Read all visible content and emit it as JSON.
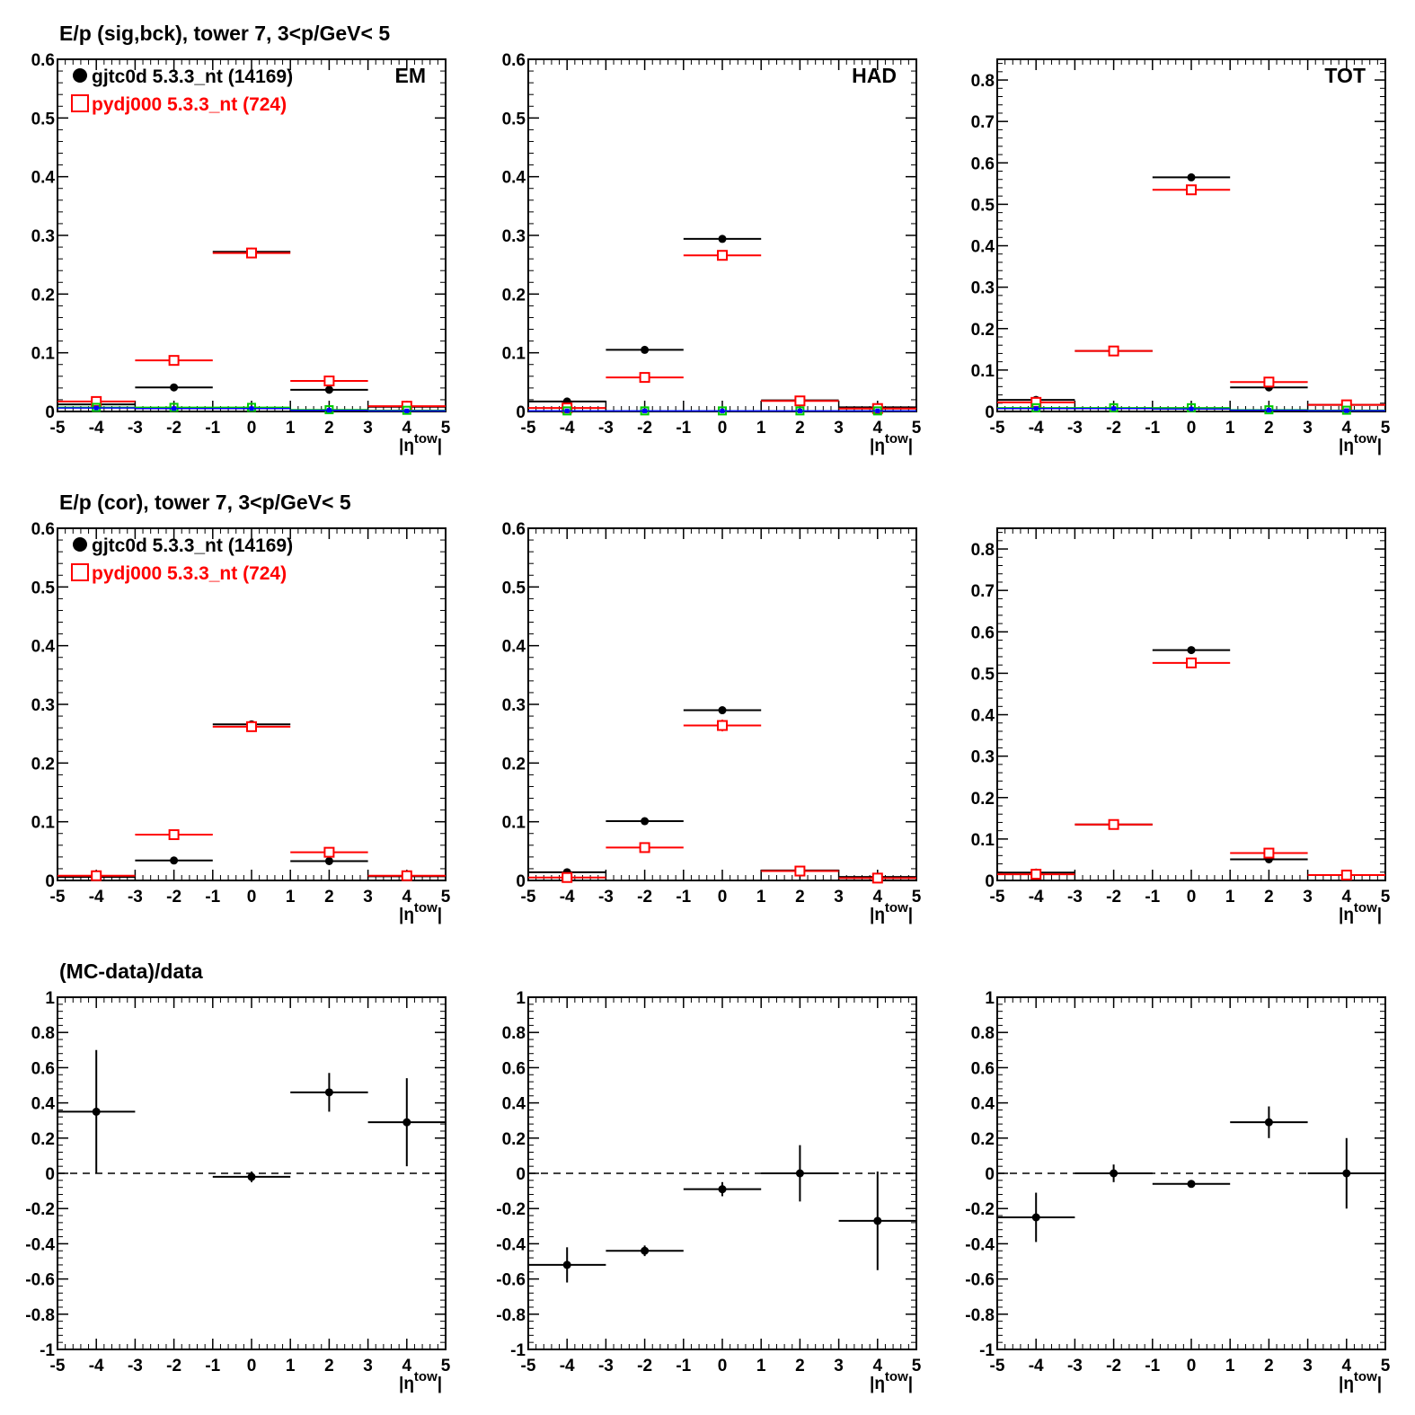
{
  "figure": {
    "row_titles": [
      "E/p (sig,bck), tower 7,  3<p/GeV< 5",
      "E/p (cor), tower 7,  3<p/GeV< 5",
      "(MC-data)/data"
    ],
    "colors": {
      "data": "#000000",
      "mc": "#ff0000",
      "green": "#00cc00",
      "blue": "#0000ff",
      "axis": "#000000"
    }
  },
  "chart_data": [
    {
      "type": "scatter",
      "row": 0,
      "col": 0,
      "panel_label": "EM",
      "xlim": [
        -5,
        5
      ],
      "ylim": [
        0,
        0.6
      ],
      "x_ticks": [
        "-5",
        "-4",
        "-3",
        "-2",
        "-1",
        "0",
        "1",
        "2",
        "3",
        "4",
        "5"
      ],
      "y_ticks": [
        "0",
        "0.1",
        "0.2",
        "0.3",
        "0.4",
        "0.5",
        "0.6"
      ],
      "xlabel": "|η^tow|",
      "legend": [
        {
          "name": "gjtc0d 5.3.3_nt (14169)",
          "marker": "filled-circle",
          "color": "#000000"
        },
        {
          "name": "pydj000 5.3.3_nt (724)",
          "marker": "open-square",
          "color": "#ff0000"
        }
      ],
      "bins": [
        [
          -5,
          -3
        ],
        [
          -3,
          -1
        ],
        [
          -1,
          1
        ],
        [
          1,
          3
        ],
        [
          3,
          5
        ]
      ],
      "series": [
        {
          "name": "gjtc0d 5.3.3_nt (14169)",
          "color": "#000000",
          "marker": "filled-circle",
          "y": [
            0.012,
            0.041,
            0.272,
            0.037,
            0.008
          ],
          "err": [
            0.001,
            0.001,
            0.002,
            0.001,
            0.001
          ]
        },
        {
          "name": "pydj000 5.3.3_nt (724)",
          "color": "#ff0000",
          "marker": "open-square",
          "y": [
            0.017,
            0.087,
            0.27,
            0.052,
            0.009
          ],
          "err": [
            0.002,
            0.004,
            0.005,
            0.003,
            0.002
          ]
        },
        {
          "color": "#00cc00",
          "marker": "open-square-small",
          "y": [
            0.007,
            0.007,
            0.007,
            0.003,
            0.002
          ],
          "err": [
            0,
            0,
            0,
            0,
            0
          ]
        },
        {
          "color": "#0000ff",
          "marker": "filled-square-small",
          "y": [
            0.006,
            0.005,
            0.005,
            0.002,
            0.001
          ],
          "err": [
            0,
            0,
            0,
            0,
            0
          ]
        }
      ]
    },
    {
      "type": "scatter",
      "row": 0,
      "col": 1,
      "panel_label": "HAD",
      "xlim": [
        -5,
        5
      ],
      "ylim": [
        0,
        0.6
      ],
      "x_ticks": [
        "-5",
        "-4",
        "-3",
        "-2",
        "-1",
        "0",
        "1",
        "2",
        "3",
        "4",
        "5"
      ],
      "y_ticks": [
        "0",
        "0.1",
        "0.2",
        "0.3",
        "0.4",
        "0.5",
        "0.6"
      ],
      "xlabel": "|η^tow|",
      "bins": [
        [
          -5,
          -3
        ],
        [
          -3,
          -1
        ],
        [
          -1,
          1
        ],
        [
          1,
          3
        ],
        [
          3,
          5
        ]
      ],
      "series": [
        {
          "color": "#000000",
          "marker": "filled-circle",
          "y": [
            0.017,
            0.105,
            0.294,
            0.019,
            0.007
          ],
          "err": [
            0.001,
            0.001,
            0.002,
            0.001,
            0.001
          ]
        },
        {
          "color": "#ff0000",
          "marker": "open-square",
          "y": [
            0.006,
            0.058,
            0.266,
            0.018,
            0.005
          ],
          "err": [
            0.002,
            0.004,
            0.008,
            0.003,
            0.002
          ]
        },
        {
          "color": "#00cc00",
          "marker": "open-square-small",
          "y": [
            0.001,
            0.001,
            0.001,
            0.001,
            0.001
          ],
          "err": [
            0,
            0,
            0,
            0,
            0
          ]
        },
        {
          "color": "#0000ff",
          "marker": "filled-square-small",
          "y": [
            0.001,
            0.001,
            0.001,
            0.001,
            0.001
          ],
          "err": [
            0,
            0,
            0,
            0,
            0
          ]
        }
      ]
    },
    {
      "type": "scatter",
      "row": 0,
      "col": 2,
      "panel_label": "TOT",
      "xlim": [
        -5,
        5
      ],
      "ylim": [
        0,
        0.85
      ],
      "x_ticks": [
        "-5",
        "-4",
        "-3",
        "-2",
        "-1",
        "0",
        "1",
        "2",
        "3",
        "4",
        "5"
      ],
      "y_ticks": [
        "0",
        "0.1",
        "0.2",
        "0.3",
        "0.4",
        "0.5",
        "0.6",
        "0.7",
        "0.8"
      ],
      "xlabel": "|η^tow|",
      "bins": [
        [
          -5,
          -3
        ],
        [
          -3,
          -1
        ],
        [
          -1,
          1
        ],
        [
          1,
          3
        ],
        [
          3,
          5
        ]
      ],
      "series": [
        {
          "color": "#000000",
          "marker": "filled-circle",
          "y": [
            0.028,
            0.146,
            0.565,
            0.058,
            0.016
          ],
          "err": [
            0.001,
            0.001,
            0.002,
            0.001,
            0.001
          ]
        },
        {
          "color": "#ff0000",
          "marker": "open-square",
          "y": [
            0.022,
            0.146,
            0.535,
            0.071,
            0.016
          ],
          "err": [
            0.003,
            0.005,
            0.01,
            0.004,
            0.002
          ]
        },
        {
          "color": "#00cc00",
          "marker": "open-square-small",
          "y": [
            0.009,
            0.009,
            0.009,
            0.004,
            0.003
          ],
          "err": [
            0,
            0,
            0,
            0,
            0
          ]
        },
        {
          "color": "#0000ff",
          "marker": "filled-square-small",
          "y": [
            0.007,
            0.007,
            0.006,
            0.003,
            0.002
          ],
          "err": [
            0,
            0,
            0,
            0,
            0
          ]
        }
      ]
    },
    {
      "type": "scatter",
      "row": 1,
      "col": 0,
      "xlim": [
        -5,
        5
      ],
      "ylim": [
        0,
        0.6
      ],
      "x_ticks": [
        "-5",
        "-4",
        "-3",
        "-2",
        "-1",
        "0",
        "1",
        "2",
        "3",
        "4",
        "5"
      ],
      "y_ticks": [
        "0",
        "0.1",
        "0.2",
        "0.3",
        "0.4",
        "0.5",
        "0.6"
      ],
      "xlabel": "|η^tow|",
      "legend": [
        {
          "name": "gjtc0d 5.3.3_nt (14169)",
          "marker": "filled-circle",
          "color": "#000000"
        },
        {
          "name": "pydj000 5.3.3_nt (724)",
          "marker": "open-square",
          "color": "#ff0000"
        }
      ],
      "bins": [
        [
          -5,
          -3
        ],
        [
          -3,
          -1
        ],
        [
          -1,
          1
        ],
        [
          1,
          3
        ],
        [
          3,
          5
        ]
      ],
      "series": [
        {
          "name": "gjtc0d 5.3.3_nt (14169)",
          "color": "#000000",
          "marker": "filled-circle",
          "y": [
            0.006,
            0.034,
            0.266,
            0.033,
            0.007
          ],
          "err": [
            0.001,
            0.001,
            0.002,
            0.001,
            0.001
          ]
        },
        {
          "name": "pydj000 5.3.3_nt (724)",
          "color": "#ff0000",
          "marker": "open-square",
          "y": [
            0.008,
            0.078,
            0.262,
            0.048,
            0.008
          ],
          "err": [
            0.002,
            0.004,
            0.008,
            0.003,
            0.002
          ]
        }
      ]
    },
    {
      "type": "scatter",
      "row": 1,
      "col": 1,
      "xlim": [
        -5,
        5
      ],
      "ylim": [
        0,
        0.6
      ],
      "x_ticks": [
        "-5",
        "-4",
        "-3",
        "-2",
        "-1",
        "0",
        "1",
        "2",
        "3",
        "4",
        "5"
      ],
      "y_ticks": [
        "0",
        "0.1",
        "0.2",
        "0.3",
        "0.4",
        "0.5",
        "0.6"
      ],
      "xlabel": "|η^tow|",
      "bins": [
        [
          -5,
          -3
        ],
        [
          -3,
          -1
        ],
        [
          -1,
          1
        ],
        [
          1,
          3
        ],
        [
          3,
          5
        ]
      ],
      "series": [
        {
          "color": "#000000",
          "marker": "filled-circle",
          "y": [
            0.014,
            0.101,
            0.29,
            0.017,
            0.006
          ],
          "err": [
            0.001,
            0.001,
            0.002,
            0.001,
            0.001
          ]
        },
        {
          "color": "#ff0000",
          "marker": "open-square",
          "y": [
            0.005,
            0.056,
            0.264,
            0.016,
            0.004
          ],
          "err": [
            0.002,
            0.004,
            0.01,
            0.003,
            0.002
          ]
        }
      ]
    },
    {
      "type": "scatter",
      "row": 1,
      "col": 2,
      "xlim": [
        -5,
        5
      ],
      "ylim": [
        0,
        0.85
      ],
      "x_ticks": [
        "-5",
        "-4",
        "-3",
        "-2",
        "-1",
        "0",
        "1",
        "2",
        "3",
        "4",
        "5"
      ],
      "y_ticks": [
        "0",
        "0.1",
        "0.2",
        "0.3",
        "0.4",
        "0.5",
        "0.6",
        "0.7",
        "0.8"
      ],
      "xlabel": "|η^tow|",
      "bins": [
        [
          -5,
          -3
        ],
        [
          -3,
          -1
        ],
        [
          -1,
          1
        ],
        [
          1,
          3
        ],
        [
          3,
          5
        ]
      ],
      "series": [
        {
          "color": "#000000",
          "marker": "filled-circle",
          "y": [
            0.019,
            0.135,
            0.556,
            0.051,
            0.013
          ],
          "err": [
            0.001,
            0.001,
            0.002,
            0.001,
            0.001
          ]
        },
        {
          "color": "#ff0000",
          "marker": "open-square",
          "y": [
            0.015,
            0.135,
            0.525,
            0.066,
            0.013
          ],
          "err": [
            0.003,
            0.005,
            0.012,
            0.004,
            0.002
          ]
        }
      ]
    },
    {
      "type": "scatter",
      "row": 2,
      "col": 0,
      "xlim": [
        -5,
        5
      ],
      "ylim": [
        -1,
        1
      ],
      "x_ticks": [
        "-5",
        "-4",
        "-3",
        "-2",
        "-1",
        "0",
        "1",
        "2",
        "3",
        "4",
        "5"
      ],
      "y_ticks": [
        "-1",
        "-0.8",
        "-0.6",
        "-0.4",
        "-0.2",
        "0",
        "0.2",
        "0.4",
        "0.6",
        "0.8",
        "1"
      ],
      "xlabel": "|η^tow|",
      "reference_line": 0,
      "bins": [
        [
          -5,
          -3
        ],
        [
          -1,
          1
        ],
        [
          1,
          3
        ],
        [
          3,
          5
        ]
      ],
      "series": [
        {
          "color": "#000000",
          "marker": "filled-circle",
          "y": [
            0.35,
            -0.02,
            0.46,
            0.29
          ],
          "err": [
            0.35,
            0.03,
            0.11,
            0.25
          ]
        }
      ]
    },
    {
      "type": "scatter",
      "row": 2,
      "col": 1,
      "xlim": [
        -5,
        5
      ],
      "ylim": [
        -1,
        1
      ],
      "x_ticks": [
        "-5",
        "-4",
        "-3",
        "-2",
        "-1",
        "0",
        "1",
        "2",
        "3",
        "4",
        "5"
      ],
      "y_ticks": [
        "-1",
        "-0.8",
        "-0.6",
        "-0.4",
        "-0.2",
        "0",
        "0.2",
        "0.4",
        "0.6",
        "0.8",
        "1"
      ],
      "xlabel": "|η^tow|",
      "reference_line": 0,
      "bins": [
        [
          -5,
          -3
        ],
        [
          -3,
          -1
        ],
        [
          -1,
          1
        ],
        [
          1,
          3
        ],
        [
          3,
          5
        ]
      ],
      "series": [
        {
          "color": "#000000",
          "marker": "filled-circle",
          "y": [
            -0.52,
            -0.44,
            -0.09,
            0.0,
            -0.27
          ],
          "err": [
            0.1,
            0.03,
            0.04,
            0.16,
            0.28
          ]
        }
      ]
    },
    {
      "type": "scatter",
      "row": 2,
      "col": 2,
      "xlim": [
        -5,
        5
      ],
      "ylim": [
        -1,
        1
      ],
      "x_ticks": [
        "-5",
        "-4",
        "-3",
        "-2",
        "-1",
        "0",
        "1",
        "2",
        "3",
        "4",
        "5"
      ],
      "y_ticks": [
        "-1",
        "-0.8",
        "-0.6",
        "-0.4",
        "-0.2",
        "0",
        "0.2",
        "0.4",
        "0.6",
        "0.8",
        "1"
      ],
      "xlabel": "|η^tow|",
      "reference_line": 0,
      "bins": [
        [
          -5,
          -3
        ],
        [
          -3,
          -1
        ],
        [
          -1,
          1
        ],
        [
          1,
          3
        ],
        [
          3,
          5
        ]
      ],
      "series": [
        {
          "color": "#000000",
          "marker": "filled-circle",
          "y": [
            -0.25,
            0.0,
            -0.06,
            0.29,
            0.0
          ],
          "err": [
            0.14,
            0.05,
            0.02,
            0.09,
            0.2
          ]
        }
      ]
    }
  ]
}
